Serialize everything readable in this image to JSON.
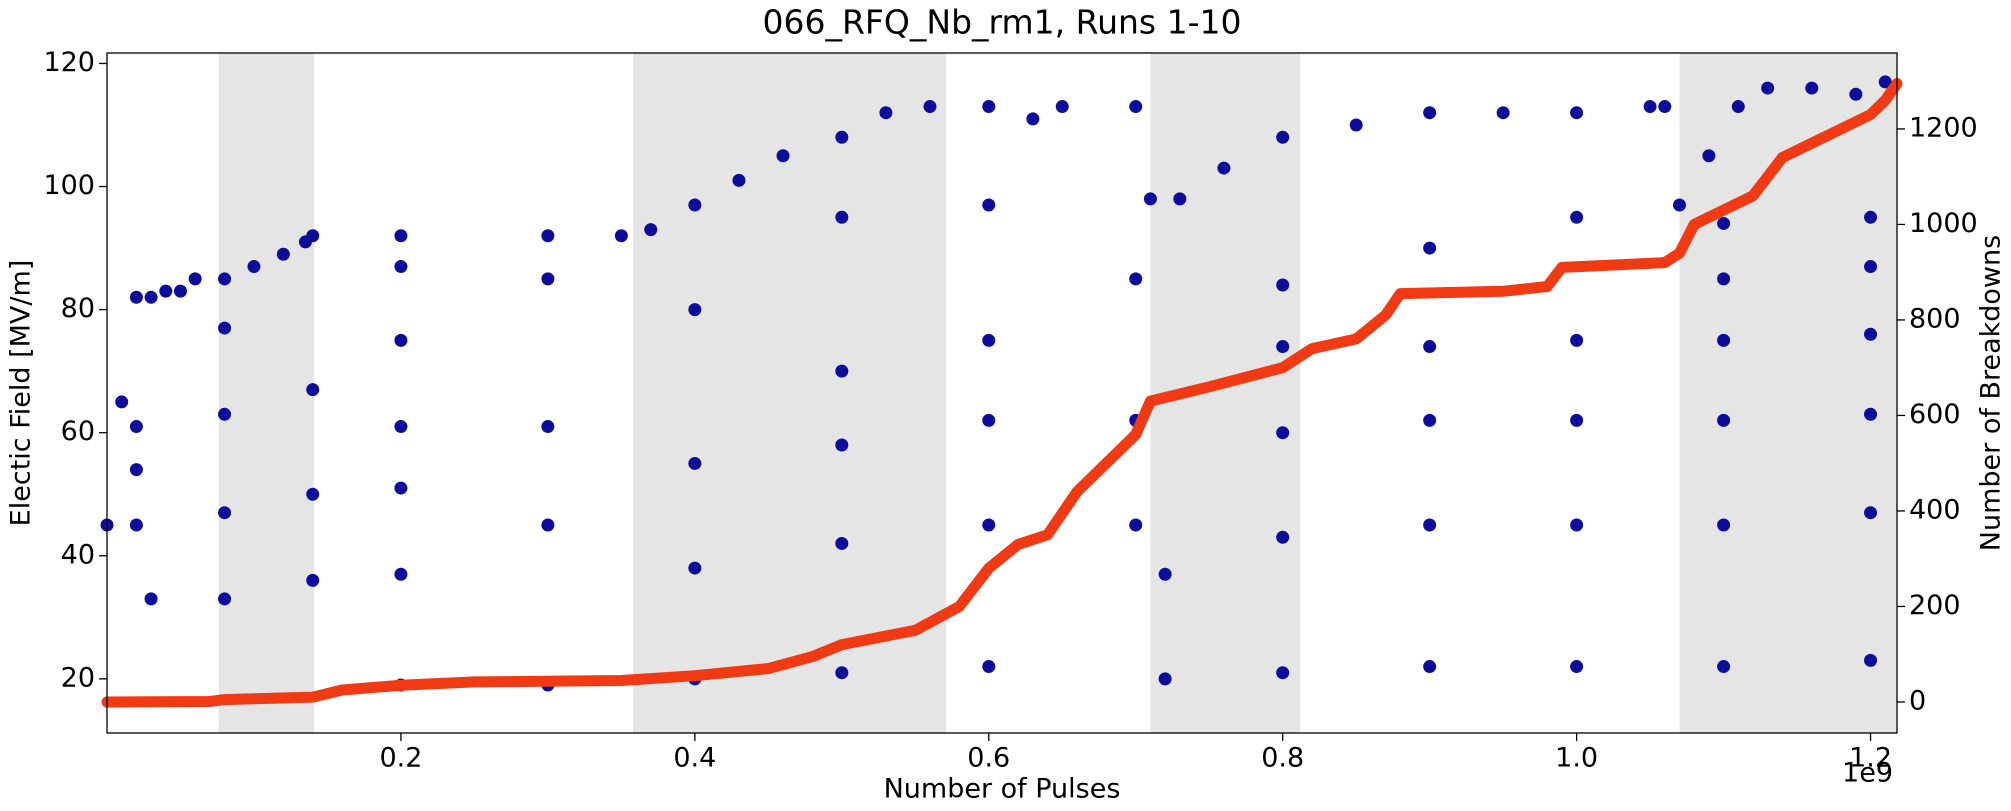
{
  "chart_data": {
    "type": "scatter",
    "title": "066_RFQ_Nb_rm1, Runs 1-10",
    "x_label": "Number of Pulses",
    "x_offset_label": "1e9",
    "y_label": "Electic Field [MV/m]",
    "y2_label": "Number of Breakdowns",
    "xlim": [
      0,
      1218000000
    ],
    "ylim": [
      11.2,
      121.7
    ],
    "y2lim": [
      -65,
      1359
    ],
    "xticks": [
      {
        "value": 200000000,
        "label": "0.2"
      },
      {
        "value": 400000000,
        "label": "0.4"
      },
      {
        "value": 600000000,
        "label": "0.6"
      },
      {
        "value": 800000000,
        "label": "0.8"
      },
      {
        "value": 1000000000,
        "label": "1.0"
      },
      {
        "value": 1200000000,
        "label": "1.2"
      }
    ],
    "yticks": [
      20,
      40,
      60,
      80,
      100,
      120
    ],
    "y2ticks": [
      0,
      200,
      400,
      600,
      800,
      1000,
      1200
    ],
    "y_label_color": "#1a1aa8",
    "y2_label_color": "#f03a14",
    "shade_color": "#e5e5e5",
    "shaded_x_ranges": [
      [
        76000000,
        141000000
      ],
      [
        358000000,
        571000000
      ],
      [
        710000000,
        812000000
      ],
      [
        1070000000,
        1218000000
      ]
    ],
    "series": [
      {
        "color": "#0d0d9c",
        "x": [
          0,
          10000000,
          20000000,
          30000000,
          40000000,
          50000000,
          60000000,
          80000000,
          100000000,
          120000000,
          135000000,
          140000000,
          200000000,
          300000000,
          350000000,
          370000000,
          400000000,
          430000000,
          460000000,
          500000000,
          530000000,
          560000000,
          600000000,
          630000000,
          650000000,
          700000000,
          710000000,
          730000000,
          760000000,
          800000000,
          850000000,
          900000000,
          950000000,
          1000000000,
          1050000000,
          1060000000,
          1070000000,
          1090000000,
          1110000000,
          1130000000,
          1160000000,
          1190000000,
          1210000000,
          20000000,
          20000000,
          20000000,
          30000000,
          80000000,
          80000000,
          80000000,
          80000000,
          140000000,
          140000000,
          140000000,
          200000000,
          200000000,
          200000000,
          200000000,
          200000000,
          200000000,
          300000000,
          300000000,
          300000000,
          300000000,
          400000000,
          400000000,
          400000000,
          400000000,
          500000000,
          500000000,
          500000000,
          500000000,
          500000000,
          600000000,
          600000000,
          600000000,
          600000000,
          600000000,
          700000000,
          700000000,
          700000000,
          720000000,
          720000000,
          800000000,
          800000000,
          800000000,
          800000000,
          800000000,
          900000000,
          900000000,
          900000000,
          900000000,
          900000000,
          1000000000,
          1000000000,
          1000000000,
          1000000000,
          1000000000,
          1100000000,
          1100000000,
          1100000000,
          1100000000,
          1100000000,
          1100000000,
          1200000000,
          1200000000,
          1200000000,
          1200000000,
          1200000000,
          1200000000
        ],
        "values": [
          45,
          65,
          82,
          82,
          83,
          83,
          85,
          85,
          87,
          89,
          91,
          92,
          92,
          92,
          92,
          93,
          97,
          101,
          105,
          108,
          112,
          113,
          113,
          111,
          113,
          113,
          98,
          98,
          103,
          108,
          110,
          112,
          112,
          112,
          113,
          113,
          97,
          105,
          113,
          116,
          116,
          115,
          117,
          61,
          54,
          45,
          33,
          77,
          63,
          47,
          33,
          67,
          50,
          36,
          87,
          75,
          61,
          51,
          37,
          19,
          85,
          61,
          45,
          19,
          80,
          55,
          38,
          20,
          95,
          70,
          58,
          42,
          21,
          97,
          75,
          62,
          45,
          22,
          85,
          62,
          45,
          37,
          20,
          84,
          74,
          60,
          43,
          21,
          90,
          74,
          62,
          45,
          22,
          95,
          75,
          62,
          45,
          22,
          94,
          85,
          75,
          62,
          45,
          22,
          95,
          87,
          76,
          63,
          47,
          23
        ]
      },
      {
        "color": "#f03a14",
        "axis": "y2",
        "x": [
          0,
          70000000,
          80000000,
          140000000,
          160000000,
          200000000,
          250000000,
          350000000,
          400000000,
          450000000,
          480000000,
          500000000,
          550000000,
          580000000,
          600000000,
          620000000,
          640000000,
          660000000,
          680000000,
          700000000,
          710000000,
          750000000,
          800000000,
          820000000,
          850000000,
          870000000,
          880000000,
          950000000,
          980000000,
          990000000,
          1060000000,
          1070000000,
          1080000000,
          1100000000,
          1120000000,
          1140000000,
          1160000000,
          1200000000,
          1210000000,
          1218000000
        ],
        "values": [
          0,
          1,
          5,
          10,
          25,
          35,
          42,
          45,
          55,
          70,
          95,
          120,
          150,
          200,
          280,
          330,
          350,
          440,
          500,
          560,
          630,
          660,
          700,
          740,
          760,
          810,
          855,
          860,
          870,
          910,
          920,
          940,
          1000,
          1030,
          1060,
          1140,
          1170,
          1230,
          1260,
          1295
        ]
      }
    ]
  }
}
